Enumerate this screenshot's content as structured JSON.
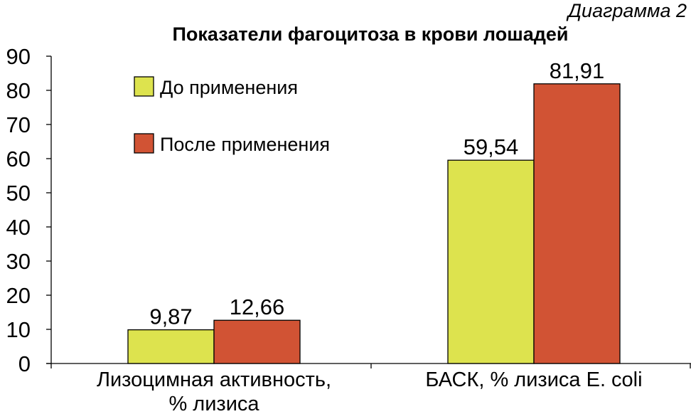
{
  "diagram_number": "Диаграмма 2",
  "colors": {
    "series_1": "#dde34e",
    "series_2": "#d15334",
    "axis": "#000000",
    "bar_outline": "#000000"
  },
  "chart_data": {
    "type": "bar",
    "title": "Показатели фагоцитоза в крови лошадей",
    "xlabel": "",
    "ylabel": "",
    "ylim": [
      0,
      90
    ],
    "yticks": [
      "0",
      "10",
      "20",
      "30",
      "40",
      "50",
      "60",
      "70",
      "80",
      "90"
    ],
    "grid": false,
    "legend_position": "top-left",
    "categories": [
      [
        "Лизоцимная активность,",
        "% лизиса"
      ],
      [
        "БАСК, % лизиса E. coli"
      ]
    ],
    "series": [
      {
        "name": "До применения",
        "values": [
          9.87,
          59.54
        ],
        "labels": [
          "9,87",
          "59,54"
        ],
        "color": "#dde34e"
      },
      {
        "name": "После применения",
        "values": [
          12.66,
          81.91
        ],
        "labels": [
          "12,66",
          "81,91"
        ],
        "color": "#d15334"
      }
    ]
  }
}
